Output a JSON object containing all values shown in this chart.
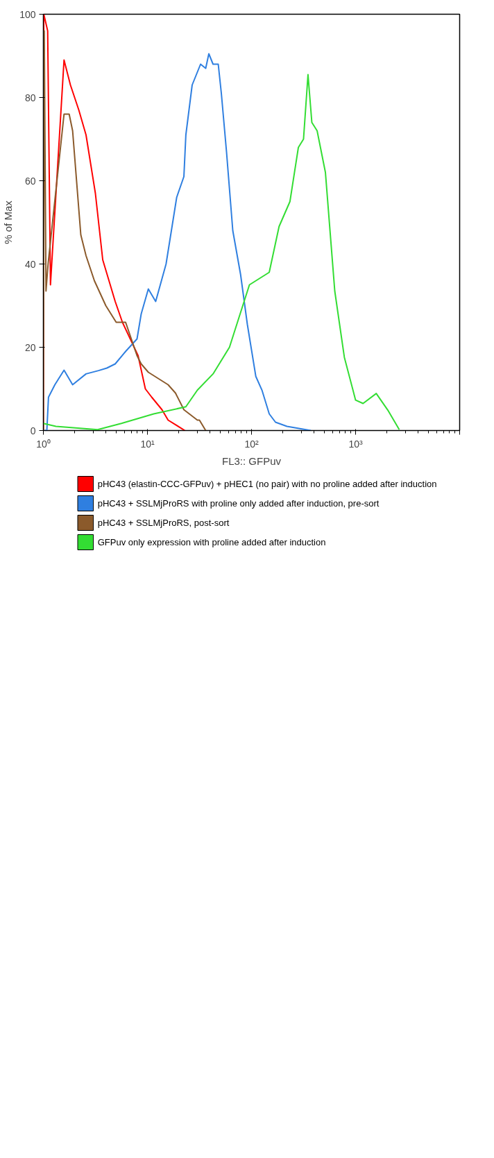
{
  "chart_data": {
    "type": "line",
    "xlabel": "FL3:: GFPuv",
    "ylabel": "% of Max",
    "log": "x",
    "grid": false,
    "legend": "bottom",
    "line_style": "solid",
    "marker": "none",
    "xlim": [
      1,
      10000
    ],
    "xticks": [
      {
        "value": 1,
        "label": "10⁰"
      },
      {
        "value": 10,
        "label": "10¹"
      },
      {
        "value": 100,
        "label": "10²"
      },
      {
        "value": 1000,
        "label": "10³"
      },
      {
        "value": 10000,
        "label": null
      }
    ],
    "ylim": [
      0,
      100
    ],
    "yticks": [
      0,
      20,
      40,
      60,
      80,
      100
    ],
    "series": [
      {
        "name": "pHC43 (elastin-CCC-GFPuv) + pHEC1 (no pair) with no proline added after induction",
        "color": "#ff0000",
        "x": [
          1,
          1.01,
          1.1,
          1.17,
          1.58,
          1.82,
          2.19,
          2.57,
          3.16,
          3.72,
          4.27,
          4.9,
          5.75,
          8.13,
          9.55,
          11,
          13.8,
          15.8,
          22.9
        ],
        "values": [
          0,
          100,
          96,
          35,
          89,
          83,
          77,
          71,
          57,
          41,
          36,
          31,
          26,
          18,
          10,
          8,
          5,
          2.5,
          0
        ]
      },
      {
        "name": "pHC43 + SSLMjProRS with proline only added after induction, pre-sort",
        "color": "#2f7fe0",
        "x": [
          1,
          1.08,
          1.12,
          1.29,
          1.58,
          1.91,
          2.57,
          3.39,
          4.07,
          4.9,
          6.17,
          7.94,
          8.71,
          10.2,
          12,
          15.1,
          19.1,
          22.4,
          23.4,
          26.9,
          32.4,
          36.3,
          38.9,
          42.7,
          47.9,
          51.3,
          57.5,
          66.1,
          78.5,
          91.2,
          110,
          126,
          148,
          170,
          219,
          372
        ],
        "values": [
          0,
          0,
          8,
          11,
          14.5,
          11,
          13.6,
          14.4,
          15,
          16,
          19,
          22,
          28,
          34,
          31,
          40,
          56,
          61,
          71,
          83,
          88,
          87,
          90.5,
          88,
          88,
          81,
          67,
          48,
          37.5,
          25.5,
          13,
          9.7,
          4,
          2,
          1,
          0
        ]
      },
      {
        "name": "pHC43 + SSLMjProRS, post-sort",
        "color": "#8b5a2b",
        "x": [
          1,
          1.02,
          1.06,
          1.11,
          1.58,
          1.77,
          1.91,
          2.29,
          2.57,
          3.09,
          3.98,
          5.01,
          5.26,
          6.17,
          7.94,
          8.71,
          10.2,
          15.8,
          18.6,
          22.4,
          30.2,
          31.6,
          36.3
        ],
        "values": [
          0,
          96,
          33.5,
          40,
          76,
          76,
          72,
          47,
          42,
          36,
          30,
          26,
          26,
          26,
          18,
          16,
          14,
          11,
          9,
          5,
          2.5,
          2.5,
          0
        ]
      },
      {
        "name": "GFPuv only expression with proline added after induction",
        "color": "#33dd33",
        "x": [
          1,
          1.32,
          3.32,
          5.62,
          11.5,
          23.4,
          30.2,
          42.7,
          61.4,
          95.5,
          148,
          184,
          234,
          282,
          316,
          349,
          380,
          427,
          513,
          631,
          780,
          1000,
          1180,
          1580,
          2040,
          2630
        ],
        "values": [
          1.7,
          1,
          0.2,
          1.7,
          4,
          5.7,
          9.7,
          13.6,
          20,
          35,
          38,
          49,
          55,
          68,
          70,
          85.5,
          74,
          72,
          62,
          33.5,
          17.6,
          7.3,
          6.5,
          8.9,
          4.9,
          0.2
        ]
      }
    ]
  }
}
